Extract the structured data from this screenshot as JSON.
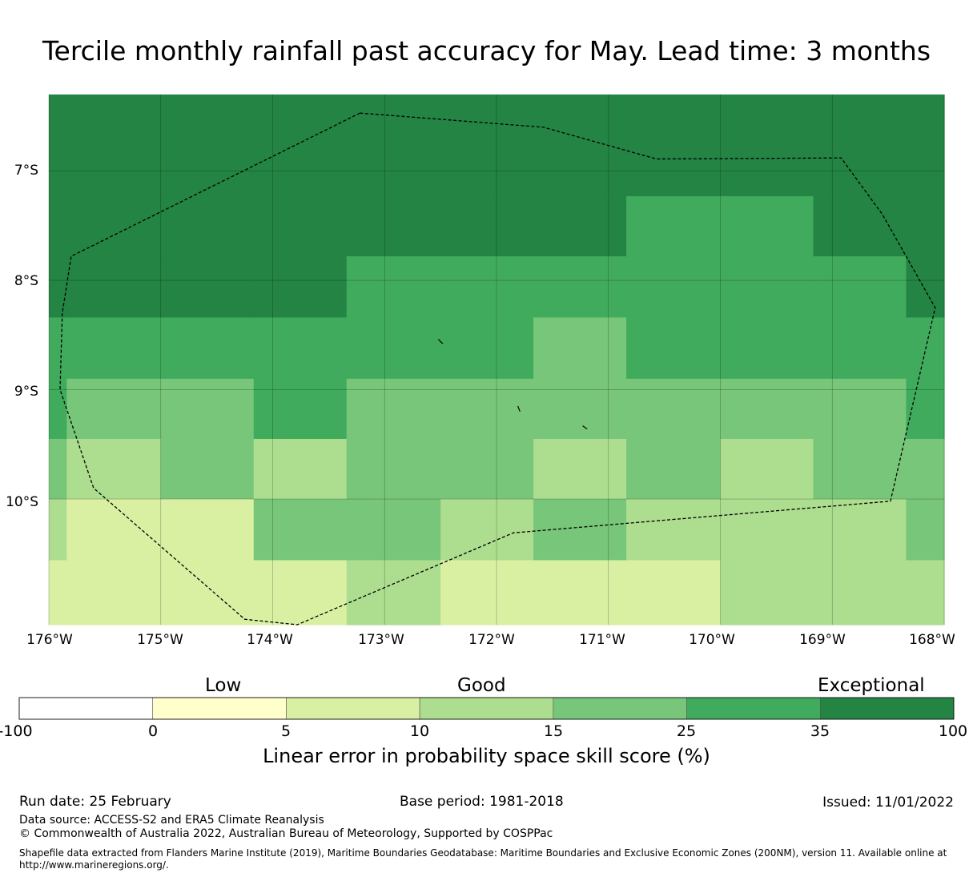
{
  "title": "Tercile monthly rainfall past accuracy for May. Lead time: 3 months",
  "colors": {
    "c25_35": "#41ab5d",
    "c35_100": "#238443",
    "c15_25": "#78c679",
    "c10_15": "#addd8e",
    "c5_10": "#d9f0a3",
    "c0_5": "#ffffcc",
    "cneg": "#ffffff"
  },
  "map": {
    "lon_range": [
      -176,
      -168
    ],
    "lat_range": [
      -11.15,
      -6.3
    ],
    "lat_ticks": [
      "7°S",
      "8°S",
      "9°S",
      "10°S"
    ],
    "lat_tick_values": [
      -7,
      -8,
      -9,
      -10
    ],
    "lon_ticks": [
      "176°W",
      "175°W",
      "174°W",
      "173°W",
      "172°W",
      "171°W",
      "170°W",
      "169°W",
      "168°W"
    ],
    "lon_tick_values": [
      -176,
      -175,
      -174,
      -173,
      -172,
      -171,
      -170,
      -169,
      -168
    ],
    "grid_lon_edges": [
      -176,
      -175.84,
      -175,
      -174.17,
      -173.34,
      -172.5,
      -171.67,
      -170.84,
      -170,
      -169.17,
      -168.34,
      -168
    ],
    "grid_lat_edges": [
      -6.3,
      -7.23,
      -7.78,
      -8.34,
      -8.9,
      -9.45,
      -10.0,
      -10.56,
      -11.15
    ],
    "cells": [
      [
        "c35_100",
        "c35_100",
        "c35_100",
        "c35_100",
        "c35_100",
        "c35_100",
        "c35_100",
        "c35_100",
        "c35_100",
        "c35_100",
        "c35_100"
      ],
      [
        "c35_100",
        "c35_100",
        "c35_100",
        "c35_100",
        "c35_100",
        "c35_100",
        "c35_100",
        "c25_35",
        "c25_35",
        "c35_100",
        "c35_100"
      ],
      [
        "c35_100",
        "c35_100",
        "c35_100",
        "c35_100",
        "c25_35",
        "c25_35",
        "c25_35",
        "c25_35",
        "c25_35",
        "c25_35",
        "c35_100"
      ],
      [
        "c25_35",
        "c25_35",
        "c25_35",
        "c25_35",
        "c25_35",
        "c25_35",
        "c15_25",
        "c25_35",
        "c25_35",
        "c25_35",
        "c25_35"
      ],
      [
        "c25_35",
        "c15_25",
        "c15_25",
        "c25_35",
        "c15_25",
        "c15_25",
        "c15_25",
        "c15_25",
        "c15_25",
        "c15_25",
        "c25_35"
      ],
      [
        "c15_25",
        "c10_15",
        "c15_25",
        "c10_15",
        "c15_25",
        "c15_25",
        "c10_15",
        "c15_25",
        "c10_15",
        "c15_25",
        "c15_25"
      ],
      [
        "c10_15",
        "c5_10",
        "c5_10",
        "c15_25",
        "c15_25",
        "c10_15",
        "c15_25",
        "c10_15",
        "c10_15",
        "c10_15",
        "c15_25"
      ],
      [
        "c5_10",
        "c5_10",
        "c5_10",
        "c5_10",
        "c10_15",
        "c5_10",
        "c5_10",
        "c5_10",
        "c10_15",
        "c10_15",
        "c10_15"
      ]
    ],
    "eez_boundary": [
      [
        -173.22,
        -6.47
      ],
      [
        -171.58,
        -6.6
      ],
      [
        -170.57,
        -6.89
      ],
      [
        -168.92,
        -6.88
      ],
      [
        -168.55,
        -7.4
      ],
      [
        -168.08,
        -8.25
      ],
      [
        -168.48,
        -10.02
      ],
      [
        -171.85,
        -10.31
      ],
      [
        -173.78,
        -11.15
      ],
      [
        -174.25,
        -11.1
      ],
      [
        -175.6,
        -9.9
      ],
      [
        -175.9,
        -9.0
      ],
      [
        -175.88,
        -8.3
      ],
      [
        -175.8,
        -7.78
      ],
      [
        -173.22,
        -6.47
      ]
    ],
    "islands": [
      [
        [
          -172.52,
          -8.54
        ],
        [
          -172.48,
          -8.58
        ]
      ],
      [
        [
          -171.81,
          -9.15
        ],
        [
          -171.79,
          -9.2
        ]
      ],
      [
        [
          -171.23,
          -9.33
        ],
        [
          -171.19,
          -9.36
        ]
      ]
    ]
  },
  "legend": {
    "categories": [
      "Low",
      "Good",
      "Exceptional"
    ],
    "boundaries": [
      "-100",
      "0",
      "5",
      "10",
      "15",
      "25",
      "35",
      "100"
    ],
    "bins": [
      "cneg",
      "c0_5",
      "c5_10",
      "c10_15",
      "c15_25",
      "c25_35",
      "c35_100"
    ],
    "title": "Linear error in probability space skill score (%)"
  },
  "footer": {
    "run_date": "Run date: 25 February",
    "base_period": "Base period: 1981-2018",
    "issued": "Issued: 11/01/2022",
    "data_source": "Data source: ACCESS-S2 and ERA5 Climate Reanalysis",
    "copyright": "© Commonwealth of Australia 2022, Australian Bureau of Meteorology, Supported by COSPPac",
    "shapefile_line1": "Shapefile data extracted from Flanders Marine Institute (2019), Maritime Boundaries Geodatabase: Maritime Boundaries and Exclusive Economic Zones (200NM), version 11. Available online at",
    "shapefile_line2": "http://www.marineregions.org/."
  }
}
